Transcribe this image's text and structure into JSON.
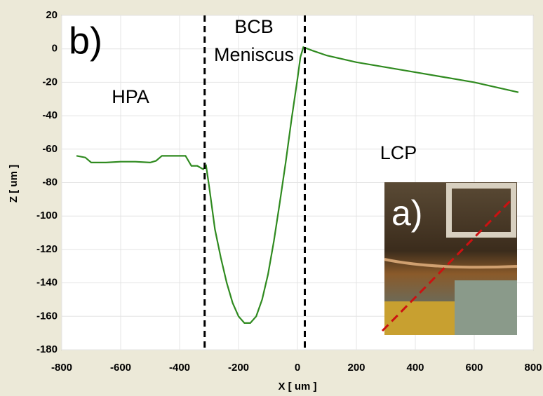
{
  "chart_data": {
    "type": "line",
    "panel_label": "b)",
    "annotations": [
      "BCB",
      "Meniscus",
      "HPA",
      "LCP"
    ],
    "inset_label": "a)",
    "x_label": "X [ um ]",
    "y_label": "Z [ um ]",
    "x": [
      -750,
      -720,
      -700,
      -650,
      -600,
      -550,
      -500,
      -480,
      -460,
      -420,
      -380,
      -370,
      -360,
      -340,
      -320,
      -310,
      -305,
      -300,
      -290,
      -280,
      -260,
      -240,
      -220,
      -200,
      -180,
      -160,
      -140,
      -120,
      -100,
      -80,
      -60,
      -40,
      -20,
      0,
      10,
      20,
      50,
      100,
      200,
      300,
      400,
      500,
      600,
      700,
      750
    ],
    "series": [
      {
        "color": "#2f8a1f",
        "values": [
          -64,
          -65,
          -68,
          -68,
          -67.5,
          -67.5,
          -68,
          -67,
          -64,
          -64,
          -64,
          -67,
          -70,
          -70,
          -72,
          -70,
          -76,
          -82,
          -95,
          -108,
          -125,
          -140,
          -152,
          -160,
          -164,
          -164,
          -160,
          -150,
          -135,
          -115,
          -92,
          -68,
          -42,
          -18,
          -5,
          1,
          -1,
          -4,
          -8,
          -11,
          -14,
          -17,
          -20,
          -24,
          -26
        ]
      }
    ],
    "vlines": [
      -315,
      25
    ],
    "xlim": [
      -800,
      800
    ],
    "xticks": [
      -800,
      -600,
      -400,
      -200,
      0,
      200,
      400,
      600,
      800
    ],
    "ylim": [
      -180,
      20
    ],
    "yticks": [
      20,
      0,
      -20,
      -40,
      -60,
      -80,
      -100,
      -120,
      -140,
      -160,
      -180
    ],
    "grid": true
  }
}
